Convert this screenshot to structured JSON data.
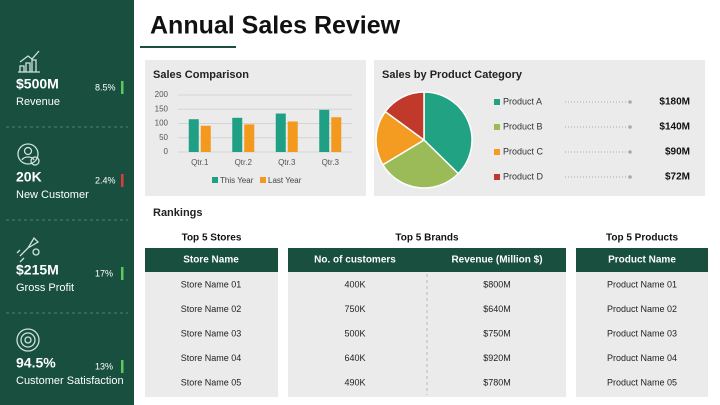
{
  "header": {
    "title": "Annual Sales Review"
  },
  "sidebar": {
    "kpis": [
      {
        "value": "$500M",
        "label": "Revenue",
        "change": "8.5%"
      },
      {
        "value": "20K",
        "label": "New Customer",
        "change": "2.4%"
      },
      {
        "value": "$215M",
        "label": "Gross Profit",
        "change": "17%"
      },
      {
        "value": "94.5%",
        "label": "Customer Satisfaction",
        "change": "13%"
      }
    ]
  },
  "chart_data": [
    {
      "type": "bar",
      "title": "Sales Comparison",
      "categories": [
        "Qtr.1",
        "Qtr.2",
        "Qtr.3",
        "Qtr.3"
      ],
      "series": [
        {
          "name": "This Year",
          "color": "#1fa084",
          "values": [
            115,
            120,
            135,
            148
          ]
        },
        {
          "name": "Last Year",
          "color": "#f39a1e",
          "values": [
            92,
            97,
            107,
            122
          ]
        }
      ],
      "ylim": [
        0,
        200
      ],
      "yticks": [
        0,
        50,
        100,
        150,
        200
      ],
      "grid": true
    },
    {
      "type": "pie",
      "title": "Sales by Product Category",
      "categories": [
        "Product A",
        "Product B",
        "Product C",
        "Product D"
      ],
      "values": [
        180,
        140,
        90,
        72
      ],
      "value_labels": [
        "$180M",
        "$140M",
        "$90M",
        "$72M"
      ],
      "colors": [
        "#21a383",
        "#9bbb59",
        "#f49b21",
        "#c0392b"
      ]
    }
  ],
  "rankings": {
    "title": "Rankings",
    "stores": {
      "title": "Top 5 Stores",
      "header": [
        "Store Name"
      ],
      "rows": [
        [
          "Store Name 01"
        ],
        [
          "Store Name 02"
        ],
        [
          "Store Name 03"
        ],
        [
          "Store Name 04"
        ],
        [
          "Store Name 05"
        ]
      ]
    },
    "brands": {
      "title": "Top 5 Brands",
      "header": [
        "No. of customers",
        "Revenue (Million $)"
      ],
      "rows": [
        [
          "400K",
          "$800M"
        ],
        [
          "750K",
          "$640M"
        ],
        [
          "500K",
          "$750M"
        ],
        [
          "640K",
          "$920M"
        ],
        [
          "490K",
          "$780M"
        ]
      ]
    },
    "products": {
      "title": "Top 5 Products",
      "header": [
        "Product Name"
      ],
      "rows": [
        [
          "Product Name 01"
        ],
        [
          "Product Name 02"
        ],
        [
          "Product Name 03"
        ],
        [
          "Product Name 04"
        ],
        [
          "Product Name 05"
        ]
      ]
    }
  }
}
